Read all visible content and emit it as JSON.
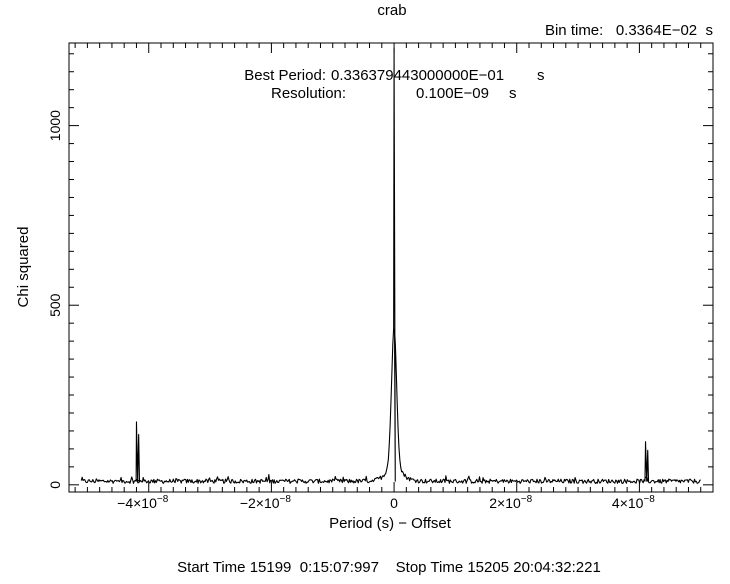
{
  "chart_data": {
    "type": "line",
    "title": "crab",
    "xlabel": "Period (s) − Offset",
    "ylabel": "Chi squared",
    "xlim": [
      -5.3e-08,
      5.2e-08
    ],
    "ylim": [
      -20,
      1230
    ],
    "x_ticks": [
      {
        "value": -4e-08,
        "label": "−4×10",
        "exp": "−8"
      },
      {
        "value": -2e-08,
        "label": "−2×10",
        "exp": "−8"
      },
      {
        "value": 0,
        "label": "0",
        "exp": ""
      },
      {
        "value": 2e-08,
        "label": "2×10",
        "exp": "−8"
      },
      {
        "value": 4e-08,
        "label": "4×10",
        "exp": "−8"
      }
    ],
    "y_ticks": [
      {
        "value": 0,
        "label": "0"
      },
      {
        "value": 500,
        "label": "500"
      },
      {
        "value": 1000,
        "label": "1000"
      }
    ],
    "grid": false,
    "noise_baseline": 10,
    "x_range": [
      -5.1e-08,
      5e-08
    ],
    "peaks": [
      {
        "x": 0,
        "y": 1215
      },
      {
        "x": -4.2e-08,
        "y": 175
      },
      {
        "x": 4.1e-08,
        "y": 120
      }
    ],
    "header": {
      "bin_time": "Bin time:   0.3364E−02  s",
      "best_period_label": "Best Period:",
      "best_period_value": "0.336379443000000E−01",
      "best_period_unit": "s",
      "resolution_label": "Resolution:",
      "resolution_value": "0.100E−09",
      "resolution_unit": "s"
    },
    "footer": "Start Time 15199  0:15:07:997    Stop Time 15205 20:04:32:221"
  }
}
